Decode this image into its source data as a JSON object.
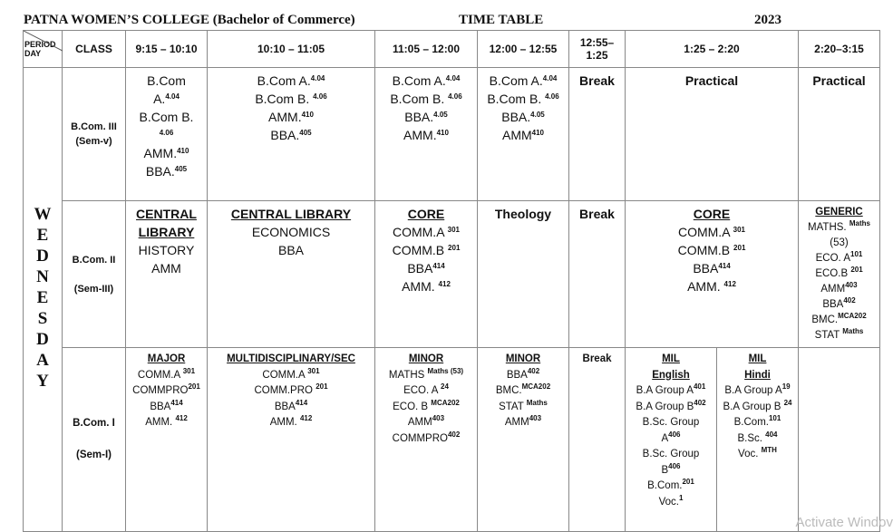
{
  "header": {
    "college": "PATNA  WOMEN’S  COLLEGE (Bachelor of Commerce)",
    "doc": "TIME TABLE",
    "year": "2023"
  },
  "corner": {
    "period": "PERIOD",
    "day": "DAY"
  },
  "columns": [
    "CLASS",
    "9:15 – 10:10",
    "10:10 – 11:05",
    "11:05 – 12:00",
    "12:00 – 12:55",
    "12:55–\n1:25",
    "1:25 – 2:20",
    "2:20–3:15"
  ],
  "day": "WEDNESDAY",
  "rows": [
    {
      "class": [
        "B.Com. III",
        "(Sem-v)"
      ],
      "cells": [
        {
          "lines": [
            [
              "B.Com",
              ""
            ],
            [
              "A.",
              "4.04"
            ],
            [
              "B.Com B.",
              ""
            ],
            [
              "",
              "4.06"
            ],
            [
              "AMM.",
              "410"
            ],
            [
              "BBA.",
              "405"
            ]
          ]
        },
        {
          "lines": [
            [
              "B.Com A.",
              "4.04"
            ],
            [
              "B.Com B. ",
              "4.06"
            ],
            [
              "AMM.",
              "410"
            ],
            [
              "BBA.",
              "405"
            ]
          ]
        },
        {
          "lines": [
            [
              "B.Com A.",
              "4.04"
            ],
            [
              "B.Com B. ",
              "4.06"
            ],
            [
              "BBA.",
              "4.05"
            ],
            [
              "AMM.",
              "410"
            ]
          ]
        },
        {
          "lines": [
            [
              "B.Com A.",
              "4.04"
            ],
            [
              "B.Com B. ",
              "4.06"
            ],
            [
              "BBA.",
              "4.05"
            ],
            [
              "AMM",
              "410"
            ]
          ]
        },
        {
          "plain": "Break"
        },
        {
          "plain": "Practical",
          "span": 2
        },
        {
          "plain": "Practical"
        }
      ]
    },
    {
      "class": [
        "B.Com. II",
        "",
        "(Sem-III)"
      ],
      "cells": [
        {
          "heading": "CENTRAL LIBRARY",
          "lines": [
            [
              "HISTORY",
              ""
            ],
            [
              "AMM",
              ""
            ]
          ]
        },
        {
          "heading": "CENTRAL LIBRARY",
          "lines": [
            [
              "ECONOMICS",
              ""
            ],
            [
              "BBA",
              ""
            ]
          ]
        },
        {
          "heading": "CORE",
          "lines": [
            [
              "COMM.A ",
              "301"
            ],
            [
              "COMM.B ",
              "201"
            ],
            [
              "BBA",
              "414"
            ],
            [
              "AMM. ",
              "412"
            ]
          ]
        },
        {
          "plain": "Theology"
        },
        {
          "plain": "Break"
        },
        {
          "heading": "CORE",
          "span": 2,
          "lines": [
            [
              "COMM.A ",
              "301"
            ],
            [
              "COMM.B ",
              "201"
            ],
            [
              "BBA",
              "414"
            ],
            [
              "AMM. ",
              "412"
            ]
          ]
        },
        {
          "heading": "GENERIC",
          "small": true,
          "lines": [
            [
              "MATHS. ",
              "Maths"
            ],
            [
              "(53)",
              ""
            ],
            [
              "ECO. A",
              "101"
            ],
            [
              "ECO.B ",
              "201"
            ],
            [
              "AMM",
              "403"
            ],
            [
              "BBA",
              "402"
            ],
            [
              "BMC.",
              "MCA202"
            ],
            [
              "STAT ",
              "Maths"
            ]
          ]
        }
      ]
    },
    {
      "class": [
        "B.Com. I",
        "",
        "(Sem-I)"
      ],
      "cells": [
        {
          "heading": "MAJOR",
          "lines": [
            [
              "COMM.A ",
              "301"
            ],
            [
              "COMMPRO",
              "201"
            ],
            [
              "BBA",
              "414"
            ],
            [
              "AMM. ",
              "412"
            ]
          ]
        },
        {
          "heading": "MULTIDISCIPLINARY/SEC",
          "lines": [
            [
              "COMM.A ",
              "301"
            ],
            [
              "COMM.PRO ",
              "201"
            ],
            [
              "BBA",
              "414"
            ],
            [
              "AMM. ",
              "412"
            ]
          ]
        },
        {
          "heading": "MINOR",
          "lines": [
            [
              "MATHS ",
              "Maths (53)"
            ],
            [
              "ECO. A ",
              "24"
            ],
            [
              "ECO. B ",
              "MCA202"
            ],
            [
              "AMM",
              "403"
            ],
            [
              "COMMPRO",
              "402"
            ]
          ]
        },
        {
          "heading": "MINOR",
          "lines": [
            [
              "BBA",
              "402"
            ],
            [
              "BMC.",
              "MCA202"
            ],
            [
              "STAT ",
              "Maths"
            ],
            [
              "AMM",
              "403"
            ]
          ]
        },
        {
          "plain": "Break"
        },
        {
          "heading": "MIL",
          "heading2": "English",
          "lines": [
            [
              "B.A Group A",
              "401"
            ],
            [
              "B.A Group B",
              "402"
            ],
            [
              "B.Sc. Group",
              ""
            ],
            [
              "A",
              "406"
            ],
            [
              "B.Sc. Group",
              ""
            ],
            [
              "B",
              "406"
            ],
            [
              "B.Com.",
              "201"
            ],
            [
              "Voc.",
              "1"
            ]
          ]
        },
        {
          "heading": "MIL",
          "heading2": "Hindi",
          "lines": [
            [
              "B.A Group A",
              "19"
            ],
            [
              "B.A Group B ",
              "24"
            ],
            [
              "B.Com.",
              "101"
            ],
            [
              "B.Sc. ",
              "404"
            ],
            [
              "Voc. ",
              "MTH"
            ]
          ]
        },
        {
          "plain": ""
        }
      ]
    }
  ],
  "watermark": "Activate Windov"
}
